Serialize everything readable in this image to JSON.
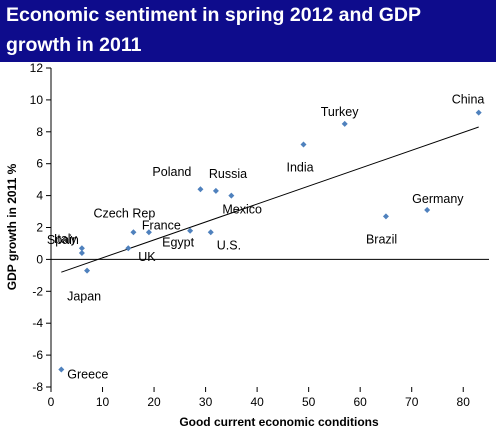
{
  "title_lines": [
    "Economic sentiment in spring 2012 and GDP",
    "growth in 2011"
  ],
  "colors": {
    "title_bg": "#0e0c8c",
    "title_text": "#ffffff",
    "point": "#4f81bd",
    "trend": "#000000"
  },
  "chart_data": {
    "type": "scatter",
    "title": "Economic sentiment in spring 2012 and GDP growth in 2011",
    "xlabel": "Good current economic conditions",
    "ylabel": "GDP growth in 2011 %",
    "xlim": [
      0,
      85
    ],
    "ylim": [
      -8,
      12
    ],
    "xticks": [
      0,
      10,
      20,
      30,
      40,
      50,
      60,
      70,
      80
    ],
    "yticks": [
      -8,
      -6,
      -4,
      -2,
      0,
      2,
      4,
      6,
      8,
      10,
      12
    ],
    "grid": false,
    "trendline": {
      "type": "linear",
      "x": [
        2,
        83
      ],
      "y": [
        -0.8,
        8.3
      ]
    },
    "points": [
      {
        "label": "China",
        "x": 83,
        "y": 9.2
      },
      {
        "label": "Turkey",
        "x": 57,
        "y": 8.5
      },
      {
        "label": "India",
        "x": 49,
        "y": 7.2
      },
      {
        "label": "Poland",
        "x": 29,
        "y": 4.4
      },
      {
        "label": "Russia",
        "x": 32,
        "y": 4.3
      },
      {
        "label": "Mexico",
        "x": 35,
        "y": 4.0
      },
      {
        "label": "Germany",
        "x": 73,
        "y": 3.1
      },
      {
        "label": "Brazil",
        "x": 65,
        "y": 2.7
      },
      {
        "label": "Czech Rep",
        "x": 16,
        "y": 1.7
      },
      {
        "label": "France",
        "x": 19,
        "y": 1.7
      },
      {
        "label": "Egypt",
        "x": 27,
        "y": 1.8
      },
      {
        "label": "U.S.",
        "x": 31,
        "y": 1.7
      },
      {
        "label": "Spain",
        "x": 6,
        "y": 0.7
      },
      {
        "label": "Italy",
        "x": 6,
        "y": 0.4
      },
      {
        "label": "UK",
        "x": 15,
        "y": 0.7
      },
      {
        "label": "Japan",
        "x": 7,
        "y": -0.7
      },
      {
        "label": "Greece",
        "x": 2,
        "y": -6.9
      }
    ]
  }
}
